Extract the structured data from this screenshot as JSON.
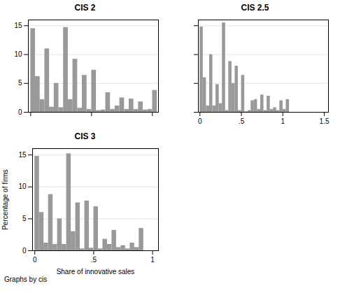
{
  "chart_data": [
    {
      "type": "histogram",
      "title": "CIS 2",
      "bins": [
        0,
        0.0385,
        0.077,
        0.1155,
        0.154,
        0.1925,
        0.231,
        0.2695,
        0.308,
        0.3465,
        0.385,
        0.4235,
        0.462,
        0.5005,
        0.539,
        0.5775,
        0.616,
        0.6545,
        0.693,
        0.7315,
        0.77,
        0.8085,
        0.847,
        0.8855,
        0.924,
        0.9625,
        1.001,
        1.0395
      ],
      "values": [
        14.5,
        6.2,
        2.2,
        11.0,
        0.9,
        5.0,
        0.8,
        14.7,
        2.2,
        9.2,
        0.7,
        6.4,
        0.5,
        7.3,
        0.3,
        0.4,
        3.4,
        0.5,
        1.1,
        2.5,
        0.5,
        2.3,
        0.5,
        1.8,
        0.4,
        0.5,
        3.8
      ],
      "color": "#999999",
      "xlim": [
        -0.01925,
        1.05
      ],
      "xticks": [
        0,
        {
          "value": 0.5,
          "label": ".5"
        },
        1
      ],
      "ylim": [
        0,
        16
      ],
      "yticks": [
        0,
        5,
        10,
        15
      ],
      "grid": true,
      "tick_labels": "y"
    },
    {
      "type": "histogram",
      "title": "CIS 2.5",
      "bins": [
        0,
        0.0385,
        0.077,
        0.1155,
        0.154,
        0.1925,
        0.231,
        0.2695,
        0.308,
        0.3465,
        0.385,
        0.4235,
        0.462,
        0.5005,
        0.539,
        0.5775,
        0.616,
        0.6545,
        0.693,
        0.7315,
        0.77,
        0.8085,
        0.847,
        0.8855,
        0.924,
        0.9625,
        1.001,
        1.0395,
        1.078
      ],
      "values": [
        14.8,
        6.0,
        1.1,
        10.0,
        1.1,
        4.8,
        1.5,
        15.5,
        0.3,
        8.8,
        5.0,
        8.0,
        0.3,
        6.4,
        0.1,
        0.3,
        2.0,
        2.2,
        0.5,
        3.0,
        0.3,
        2.8,
        0.5,
        0.8,
        0.3,
        2.0,
        0.5,
        2.2
      ],
      "color": "#999999",
      "xlim": [
        -0.01925,
        1.55
      ],
      "xticks": [
        0,
        {
          "value": 0.5,
          "label": ".5"
        },
        1,
        1.5
      ],
      "ylim": [
        0,
        16
      ],
      "yticks": [
        0,
        5,
        10,
        15
      ],
      "grid": true,
      "tick_labels": "x"
    },
    {
      "type": "histogram",
      "title": "CIS 3",
      "bins": [
        0,
        0.0385,
        0.077,
        0.1155,
        0.154,
        0.1925,
        0.231,
        0.2695,
        0.308,
        0.3465,
        0.385,
        0.4235,
        0.462,
        0.5005,
        0.539,
        0.5775,
        0.616,
        0.6545,
        0.693,
        0.7315,
        0.77,
        0.8085,
        0.847,
        0.8855,
        0.924
      ],
      "values": [
        14.8,
        6.0,
        1.2,
        8.8,
        1.0,
        5.0,
        1.0,
        15.2,
        3.0,
        7.5,
        0.3,
        7.8,
        0.4,
        6.9,
        0.3,
        1.8,
        1.0,
        3.2,
        0.5,
        0.8,
        0.3,
        1.2,
        0.5,
        3.5
      ],
      "color": "#999999",
      "xlim": [
        -0.01925,
        1.05
      ],
      "xticks": [
        0,
        {
          "value": 0.5,
          "label": ".5"
        },
        1
      ],
      "ylim": [
        0,
        16
      ],
      "yticks": [
        0,
        5,
        10,
        15
      ],
      "grid": true,
      "xlabel": "Share of innovative sales",
      "ylabel": "Percentage of firms",
      "annotations": [
        "Graphs by cis"
      ]
    }
  ]
}
